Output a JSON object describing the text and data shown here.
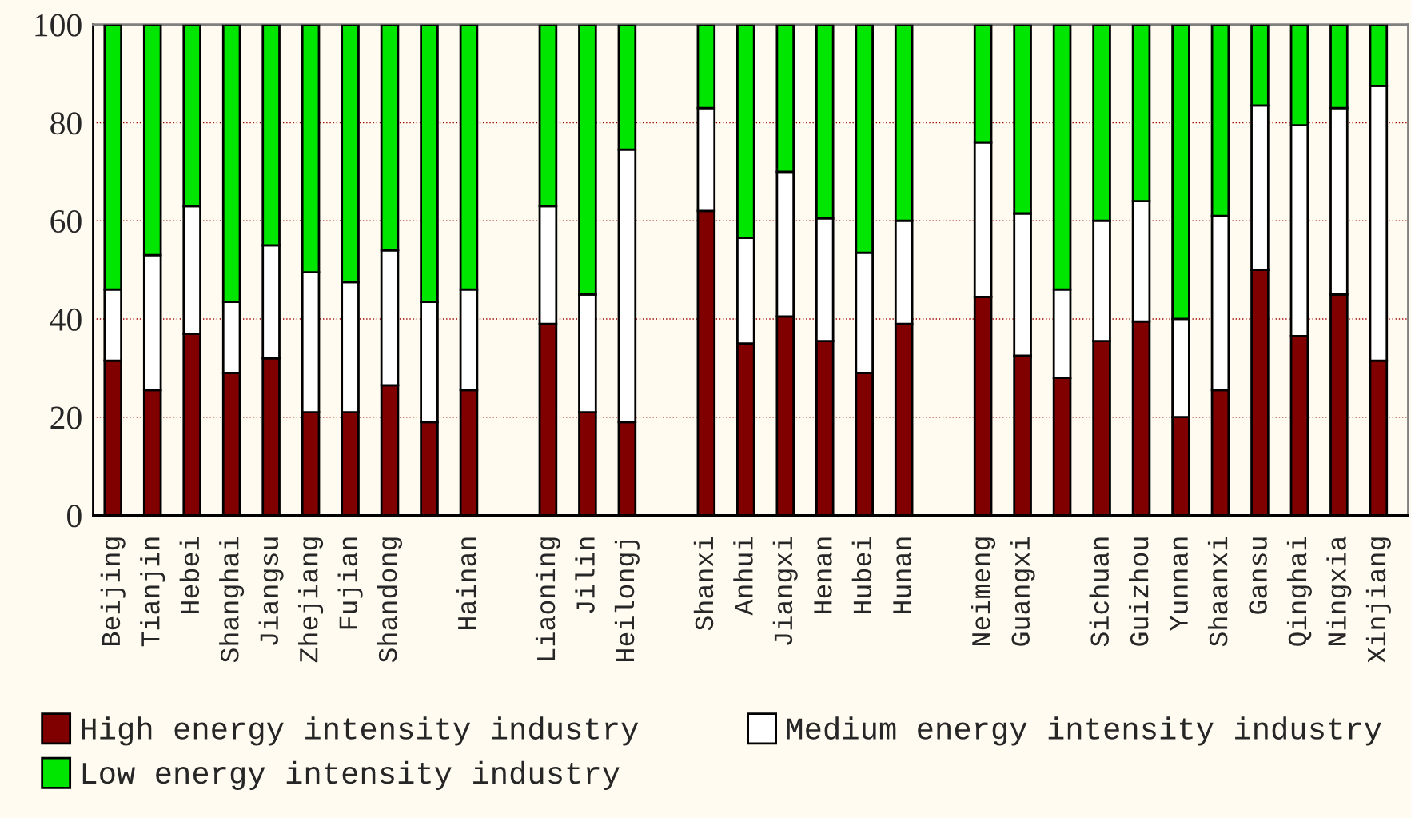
{
  "chart_data": {
    "type": "bar",
    "stacked": true,
    "categories": [
      "Beijing",
      "Tianjin",
      "Hebei",
      "Shanghai",
      "Jiangsu",
      "Zhejiang",
      "Fujian",
      "Shandong",
      null,
      "Hainan",
      null,
      "Liaoning",
      "Jilin",
      "Heilongj",
      null,
      "Shanxi",
      "Anhui",
      "Jiangxi",
      "Henan",
      "Hubei",
      "Hunan",
      null,
      "Neimeng",
      "Guangxi",
      null,
      "Sichuan",
      "Guizhou",
      "Yunnan",
      "Shaanxi",
      "Gansu",
      "Qinghai",
      "Ningxia",
      "Xinjiang"
    ],
    "series": [
      {
        "name": "High energy intensity industry",
        "color": "#800000",
        "values": [
          31.5,
          25.5,
          37,
          29,
          32,
          21,
          21,
          26.5,
          19,
          25.5,
          null,
          39,
          21,
          19,
          null,
          62,
          35,
          40.5,
          35.5,
          29,
          39,
          null,
          44.5,
          32.5,
          28,
          35.5,
          39.5,
          20,
          25.5,
          50,
          36.5,
          45,
          31.5
        ]
      },
      {
        "name": "Medium energy intensity industry",
        "color": "#ffffff",
        "values": [
          14.5,
          27.5,
          26,
          14.5,
          23,
          28.5,
          26.5,
          27.5,
          24.5,
          20.5,
          null,
          24,
          24,
          55.5,
          null,
          21,
          21.5,
          29.5,
          25,
          24.5,
          21,
          null,
          31.5,
          29,
          18,
          24.5,
          24.5,
          20,
          35.5,
          33.5,
          43,
          38,
          56
        ]
      },
      {
        "name": "Low energy intensity industry",
        "color": "#00e600",
        "values": [
          54,
          47,
          37,
          56.5,
          45,
          50.5,
          52.5,
          46,
          56.5,
          54,
          null,
          37,
          55,
          25.5,
          null,
          17,
          43.5,
          30,
          39.5,
          46.5,
          40,
          null,
          24,
          38.5,
          54,
          40,
          36,
          60,
          39,
          16.5,
          20.5,
          17,
          12.5
        ]
      }
    ],
    "ylim": [
      0,
      100
    ],
    "yticks": [
      0,
      20,
      40,
      60,
      80,
      100
    ],
    "grid": "y",
    "legend": "bottom"
  }
}
